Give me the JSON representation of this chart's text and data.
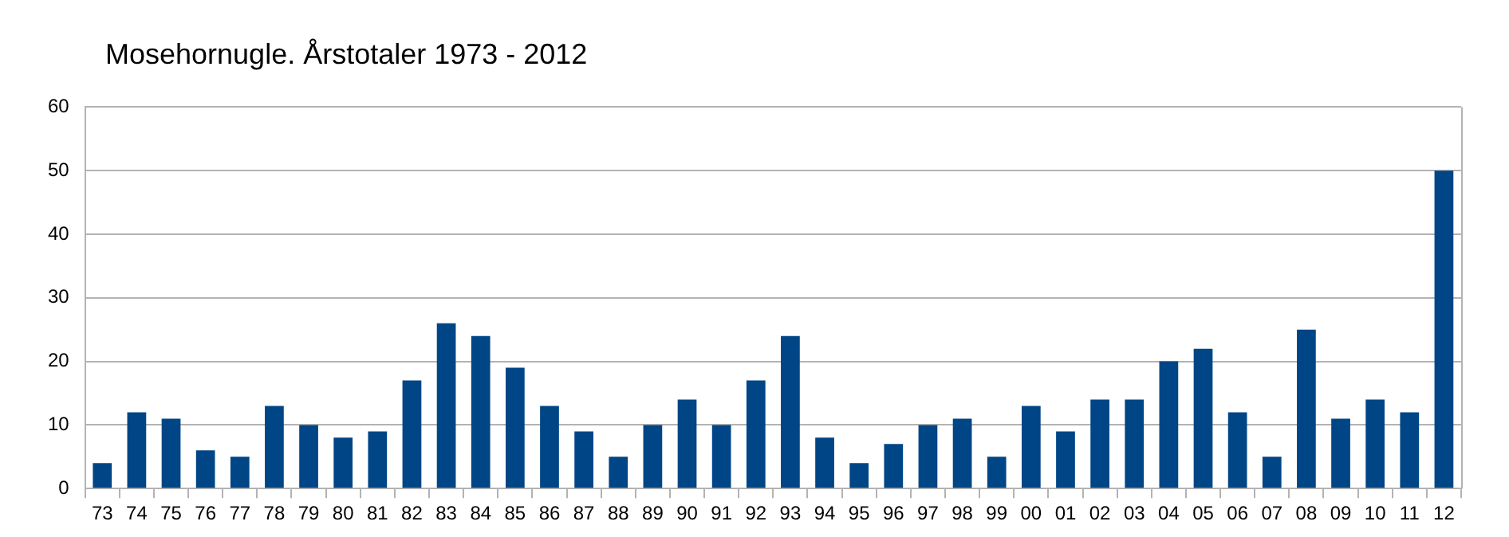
{
  "chart_data": {
    "type": "bar",
    "title": "Mosehornugle. Årstotaler 1973 - 2012",
    "categories": [
      "73",
      "74",
      "75",
      "76",
      "77",
      "78",
      "79",
      "80",
      "81",
      "82",
      "83",
      "84",
      "85",
      "86",
      "87",
      "88",
      "89",
      "90",
      "91",
      "92",
      "93",
      "94",
      "95",
      "96",
      "97",
      "98",
      "99",
      "00",
      "01",
      "02",
      "03",
      "04",
      "05",
      "06",
      "07",
      "08",
      "09",
      "10",
      "11",
      "12"
    ],
    "values": [
      4,
      12,
      11,
      6,
      5,
      13,
      10,
      8,
      9,
      17,
      26,
      24,
      19,
      13,
      9,
      5,
      10,
      14,
      10,
      17,
      24,
      8,
      4,
      7,
      10,
      11,
      5,
      13,
      9,
      14,
      14,
      20,
      22,
      12,
      5,
      25,
      11,
      14,
      12,
      50
    ],
    "color": "#004586",
    "ylim": [
      0,
      60
    ],
    "yticks": [
      0,
      10,
      20,
      30,
      40,
      50,
      60
    ],
    "grid": "y",
    "legend": false
  }
}
